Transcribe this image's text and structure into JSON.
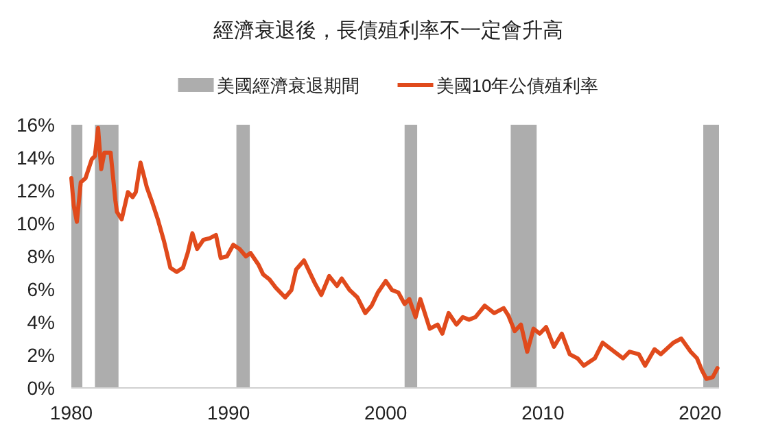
{
  "chart_data": {
    "type": "line",
    "title": "經濟衰退後，長債殖利率不一定會升高",
    "legend": "top",
    "grid": false,
    "line_style": "solid",
    "marker": "none",
    "xlim": [
      1980,
      2021.2
    ],
    "xticks": [
      1980,
      1990,
      2000,
      2010,
      2020
    ],
    "ylim": [
      0,
      16
    ],
    "yticks": [
      {
        "value": 0,
        "label": "0%"
      },
      {
        "value": 2,
        "label": "2%"
      },
      {
        "value": 4,
        "label": "4%"
      },
      {
        "value": 6,
        "label": "6%"
      },
      {
        "value": 8,
        "label": "8%"
      },
      {
        "value": 10,
        "label": "10%"
      },
      {
        "value": 12,
        "label": "12%"
      },
      {
        "value": 14,
        "label": "14%"
      },
      {
        "value": 16,
        "label": "16%"
      }
    ],
    "bands": [
      {
        "axis": "x",
        "from": 1980.0,
        "to": 1980.7,
        "label": "美國經濟衰退期間",
        "color": "#adadad"
      },
      {
        "axis": "x",
        "from": 1981.5,
        "to": 1983.0,
        "color": "#adadad"
      },
      {
        "axis": "x",
        "from": 1990.5,
        "to": 1991.35,
        "color": "#adadad"
      },
      {
        "axis": "x",
        "from": 2001.2,
        "to": 2002.0,
        "color": "#adadad"
      },
      {
        "axis": "x",
        "from": 2007.95,
        "to": 2009.6,
        "color": "#adadad"
      },
      {
        "axis": "x",
        "from": 2020.2,
        "to": 2021.2,
        "color": "#adadad"
      }
    ],
    "x": [
      1980.0,
      1980.15,
      1980.35,
      1980.6,
      1980.9,
      1981.3,
      1981.5,
      1981.7,
      1981.9,
      1982.1,
      1982.5,
      1982.8,
      1982.9,
      1983.2,
      1983.6,
      1983.9,
      1984.1,
      1984.4,
      1984.8,
      1985.1,
      1985.5,
      1985.9,
      1986.3,
      1986.7,
      1987.1,
      1987.4,
      1987.7,
      1988.0,
      1988.4,
      1988.8,
      1989.2,
      1989.5,
      1989.9,
      1990.3,
      1990.7,
      1991.1,
      1991.4,
      1991.9,
      1992.2,
      1992.6,
      1993.0,
      1993.6,
      1994.0,
      1994.3,
      1994.8,
      1995.5,
      1995.9,
      1996.4,
      1996.9,
      1997.2,
      1997.7,
      1998.2,
      1998.7,
      1999.1,
      1999.5,
      2000.0,
      2000.4,
      2000.8,
      2001.2,
      2001.5,
      2001.9,
      2002.2,
      2002.8,
      2003.3,
      2003.6,
      2004.0,
      2004.5,
      2004.9,
      2005.3,
      2005.7,
      2006.3,
      2006.9,
      2007.5,
      2007.8,
      2008.2,
      2008.6,
      2009.0,
      2009.4,
      2009.8,
      2010.2,
      2010.7,
      2011.2,
      2011.7,
      2012.2,
      2012.6,
      2013.3,
      2013.8,
      2014.2,
      2015.1,
      2015.5,
      2016.1,
      2016.5,
      2017.1,
      2017.5,
      2018.3,
      2018.8,
      2019.4,
      2019.8,
      2020.1,
      2020.4,
      2020.8,
      2021.1
    ],
    "series": [
      {
        "name": "美國10年公債殖利率",
        "color": "#e04a1c",
        "values": [
          12.75,
          11.1,
          10.1,
          12.5,
          12.75,
          13.9,
          14.1,
          15.8,
          13.3,
          14.3,
          14.3,
          11.4,
          10.7,
          10.25,
          11.9,
          11.6,
          11.9,
          13.7,
          12.2,
          11.4,
          10.25,
          8.9,
          7.3,
          7.05,
          7.3,
          8.2,
          9.4,
          8.45,
          9.0,
          9.1,
          9.3,
          7.9,
          8.0,
          8.7,
          8.45,
          8.0,
          8.2,
          7.5,
          6.9,
          6.6,
          6.1,
          5.5,
          5.95,
          7.2,
          7.75,
          6.35,
          5.65,
          6.8,
          6.2,
          6.65,
          5.95,
          5.5,
          4.55,
          5.0,
          5.8,
          6.5,
          5.95,
          5.8,
          5.1,
          5.4,
          4.3,
          5.4,
          3.6,
          3.85,
          3.3,
          4.55,
          3.85,
          4.3,
          4.15,
          4.3,
          5.0,
          4.55,
          4.85,
          4.4,
          3.45,
          3.85,
          2.2,
          3.6,
          3.3,
          3.7,
          2.5,
          3.3,
          2.05,
          1.8,
          1.35,
          1.8,
          2.75,
          2.45,
          1.8,
          2.2,
          2.05,
          1.35,
          2.35,
          2.05,
          2.75,
          3.0,
          2.2,
          1.8,
          1.1,
          0.55,
          0.65,
          1.2
        ]
      }
    ]
  }
}
